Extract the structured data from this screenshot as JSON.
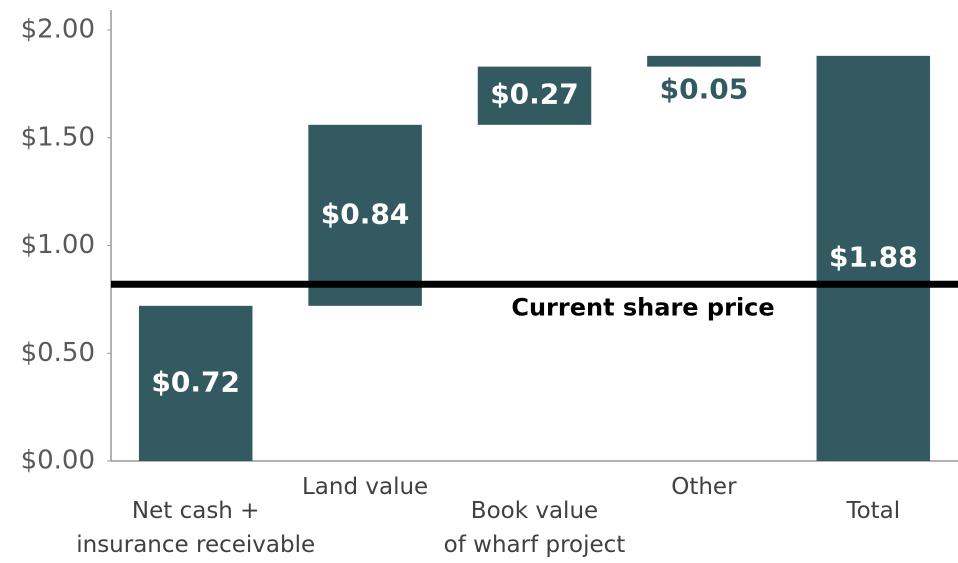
{
  "chart_data": {
    "type": "waterfall",
    "categories": [
      "Net cash +\ninsurance receivable",
      "Land value",
      "Book value\nof wharf project",
      "Other",
      "Total"
    ],
    "values": [
      0.72,
      0.84,
      0.27,
      0.05,
      1.88
    ],
    "value_labels": [
      "$0.72",
      "$0.84",
      "$0.27",
      "$0.05",
      "$1.88"
    ],
    "color": "#335a61",
    "ylim": [
      0,
      2
    ],
    "yticks": [
      {
        "value": 0,
        "label": "$0.00"
      },
      {
        "value": 0.5,
        "label": "$0.50"
      },
      {
        "value": 1,
        "label": "$1.00"
      },
      {
        "value": 1.5,
        "label": "$1.50"
      },
      {
        "value": 2,
        "label": "$2.00"
      }
    ],
    "reference_line": {
      "value": 0.82,
      "label": "Current share price"
    },
    "grid": false
  }
}
